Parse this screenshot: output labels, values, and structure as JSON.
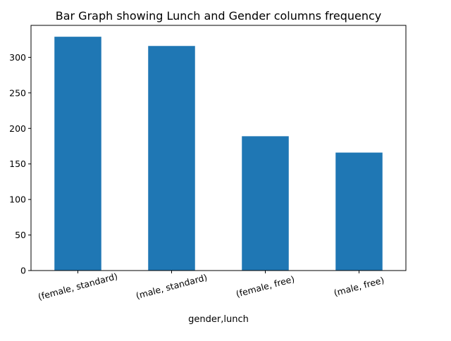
{
  "chart_data": {
    "type": "bar",
    "title": "Bar Graph showing Lunch and Gender columns frequency",
    "xlabel": "gender,lunch",
    "ylabel": "",
    "categories": [
      "(female, standard)",
      "(male, standard)",
      "(female, free)",
      "(male, free)"
    ],
    "values": [
      329,
      316,
      189,
      166
    ],
    "ylim": [
      0,
      345
    ],
    "yticks": [
      0,
      50,
      100,
      150,
      200,
      250,
      300
    ],
    "grid": false,
    "legend": "none",
    "bar_color": "#1f77b4",
    "axis_color": "#000000"
  }
}
